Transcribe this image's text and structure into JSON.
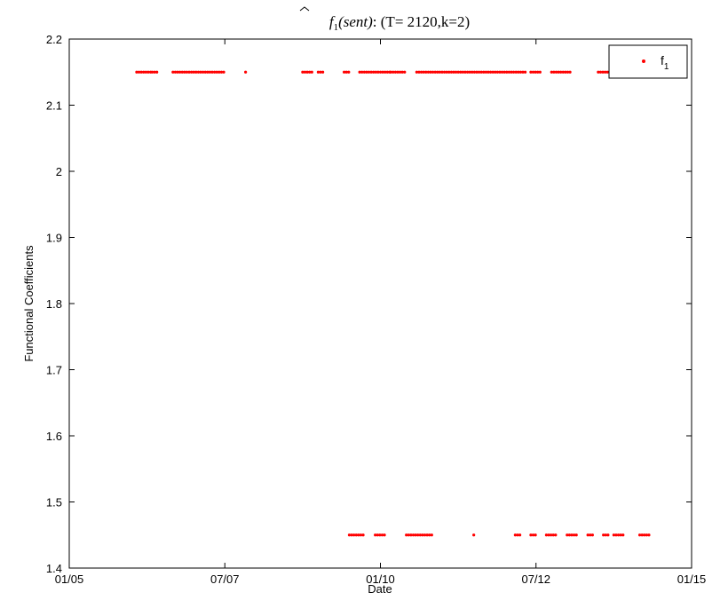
{
  "chart_data": {
    "type": "scatter",
    "title": "f̂1(sent): (T= 2120,k=2)",
    "title_parts": {
      "f": "f",
      "sub": "1",
      "arg": "(sent)",
      "rest": ": (T= 2120,k=2)"
    },
    "xlabel": "Date",
    "ylabel": "Functional Coefficients",
    "xlim": [
      "2005-01",
      "2015-01"
    ],
    "ylim": [
      1.4,
      2.2
    ],
    "x_ticks": [
      "01/05",
      "07/07",
      "01/10",
      "07/12",
      "01/15"
    ],
    "y_ticks": [
      "1.4",
      "1.5",
      "1.6",
      "1.7",
      "1.8",
      "1.9",
      "2",
      "2.1",
      "2.2"
    ],
    "grid": false,
    "legend": {
      "position": "top-right",
      "entries": [
        {
          "label": "f",
          "sub": "1"
        }
      ]
    },
    "series_color": "#ff0000",
    "series": [
      {
        "name": "f1",
        "segments": [
          {
            "x_start": "2006-02",
            "x_end": "2006-05",
            "y": 2.15
          },
          {
            "x_start": "2006-05",
            "x_end": "2006-06",
            "y": 2.15
          },
          {
            "x_start": "2006-09",
            "x_end": "2007-07",
            "y": 2.15
          },
          {
            "x_start": "2007-11",
            "x_end": "2007-11",
            "y": 2.15
          },
          {
            "x_start": "2008-10",
            "x_end": "2008-12",
            "y": 2.15
          },
          {
            "x_start": "2009-01",
            "x_end": "2009-02",
            "y": 2.15
          },
          {
            "x_start": "2009-06",
            "x_end": "2009-07",
            "y": 2.15
          },
          {
            "x_start": "2009-09",
            "x_end": "2010-03",
            "y": 2.15
          },
          {
            "x_start": "2010-03",
            "x_end": "2010-06",
            "y": 2.15
          },
          {
            "x_start": "2010-08",
            "x_end": "2012-05",
            "y": 2.15
          },
          {
            "x_start": "2012-06",
            "x_end": "2012-08",
            "y": 2.15
          },
          {
            "x_start": "2012-10",
            "x_end": "2013-02",
            "y": 2.15
          },
          {
            "x_start": "2013-07",
            "x_end": "2013-10",
            "y": 2.15
          },
          {
            "x_start": "2013-10",
            "x_end": "2014-01",
            "y": 2.15
          },
          {
            "x_start": "2009-07",
            "x_end": "2009-10",
            "y": 1.45
          },
          {
            "x_start": "2009-12",
            "x_end": "2010-02",
            "y": 1.45
          },
          {
            "x_start": "2010-06",
            "x_end": "2010-11",
            "y": 1.45
          },
          {
            "x_start": "2011-07",
            "x_end": "2011-07",
            "y": 1.45
          },
          {
            "x_start": "2012-03",
            "x_end": "2012-04",
            "y": 1.45
          },
          {
            "x_start": "2012-06",
            "x_end": "2012-07",
            "y": 1.45
          },
          {
            "x_start": "2012-09",
            "x_end": "2012-11",
            "y": 1.45
          },
          {
            "x_start": "2013-01",
            "x_end": "2013-03",
            "y": 1.45
          },
          {
            "x_start": "2013-05",
            "x_end": "2013-06",
            "y": 1.45
          },
          {
            "x_start": "2013-08",
            "x_end": "2013-09",
            "y": 1.45
          },
          {
            "x_start": "2013-10",
            "x_end": "2013-12",
            "y": 1.45
          },
          {
            "x_start": "2014-03",
            "x_end": "2014-05",
            "y": 1.45
          }
        ]
      }
    ]
  }
}
